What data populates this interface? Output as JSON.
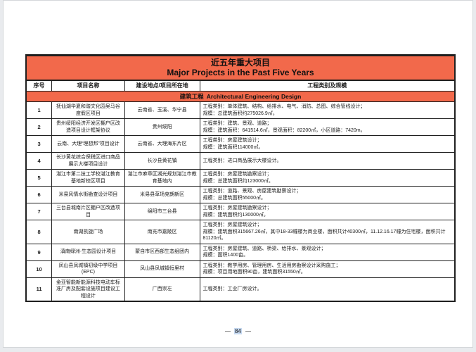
{
  "table": {
    "title_zh": "近五年重大项目",
    "title_en": "Major Projects in the Past Five Years",
    "columns": [
      "序号",
      "项目名称",
      "建设地点/项目所在地",
      "工程类别及规模"
    ],
    "section": {
      "zh": "建筑工程",
      "en": "Architectural Engineering Design"
    },
    "rows": [
      {
        "no": "1",
        "name": "抚仙湖华夏和谐文化园吴马谷度假区项目",
        "location": "云南省、玉溪、华宁县",
        "scope": [
          "工程类别：单体建筑、结构、给排水、电气、消防、总图、综合管线设计；",
          "规模：总建筑面积约275026.9㎡。"
        ]
      },
      {
        "no": "2",
        "name": "贵州绥阳经济开发区棚户区改造项目设计框架协议",
        "location": "贵州绥阳",
        "scope": [
          "工程类别：建筑、景观、道路；",
          "规模：建筑面积：641514.6㎡，景观面积：82200㎡，小区道路：7420m。"
        ]
      },
      {
        "no": "3",
        "name": "云南、大理“理想邦”项目设计",
        "location": "云南省、大理海东片区",
        "scope": [
          "工程类别：房屋建筑设计；",
          "规模：建筑面积114000㎡。"
        ]
      },
      {
        "no": "4",
        "name": "长沙黄花综合保税区进口商品展示大楼项目设计",
        "location": "长沙县黄花镇",
        "scope": [
          "工程类别：进口商品展示大楼设计。"
        ]
      },
      {
        "no": "5",
        "name": "湛江市第二技工学校湛江教育基地新校区项目",
        "location": "湛江市麻章区湖光规划湛江市教育基地内",
        "scope": [
          "工程类别：房屋建筑勘察设计；",
          "规模：总建筑面积约123000㎡。"
        ]
      },
      {
        "no": "6",
        "name": "米易风情水街勘查设计项目",
        "location": "米易县草场克朗新区",
        "scope": [
          "工程类别：道路、景观、房屋建筑勘察设计；",
          "规模：总建筑面积55000㎡。"
        ]
      },
      {
        "no": "7",
        "name": "三台县城南片区棚户区改造项目",
        "location": "绵阳市三台县",
        "scope": [
          "工程类别：房屋建筑勘察设计；",
          "规模：建筑面积约130000㎡。"
        ]
      },
      {
        "no": "8",
        "name": "南湖凯旋广场",
        "location": "南充市嘉陵区",
        "scope": [
          "工程类别：房屋建筑设计；",
          "规模：建筑面积315667.26㎡，其中18-33幢楼为商业楼，面积共计40300㎡，11.12.16.17幢为住宅楼，面积共计81120㎡。"
        ]
      },
      {
        "no": "9",
        "name": "滇南绿洲·生态园设计项目",
        "location": "蒙自市区西部生态组团内",
        "scope": [
          "工程类别：房屋建筑、道路、桥梁、给排水、景观设计；",
          "规模：面积1400亩。"
        ]
      },
      {
        "no": "10",
        "name": "凤山县凤城镇初级中学项目(EPC)",
        "location": "凤山县凤城镇恒里村",
        "scope": [
          "工程类别：教学用房、管理用房、生活用房勘察设计采购施工；",
          "规模：项目用地面积90亩，建筑面积31550㎡。"
        ]
      },
      {
        "no": "11",
        "name": "金亚智能新能源科技电动车标准厂房及配套设施项目建设工程设计",
        "location": "广西崇左",
        "scope": [
          "工程类别：工业厂房设计。"
        ]
      }
    ]
  },
  "footer": {
    "dash_left": "—",
    "page_number": "84",
    "dash_right": "—"
  },
  "colors": {
    "accent_orange": "#f2694b",
    "border_dark": "#1f1f1f",
    "page_number_highlight": "#c6d9f1"
  }
}
